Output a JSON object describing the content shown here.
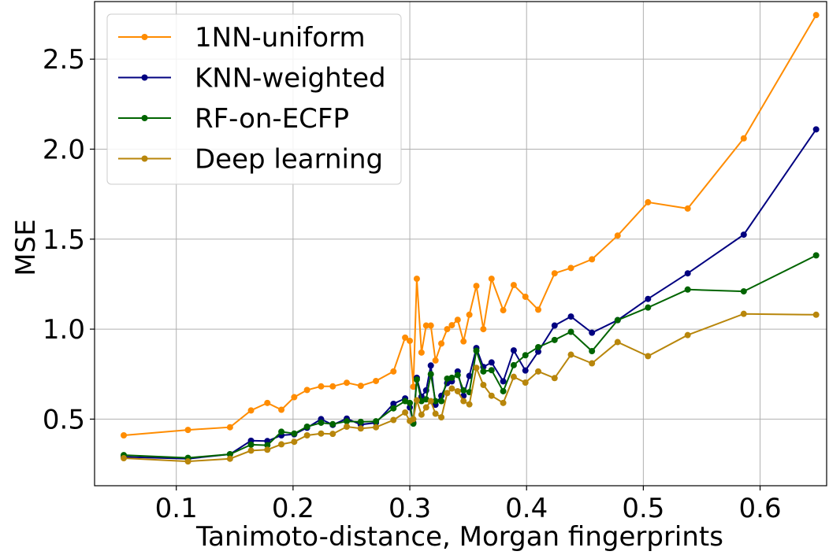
{
  "chart_data": {
    "type": "line",
    "title": "",
    "xlabel": "Tanimoto-distance, Morgan fingerprints",
    "ylabel": "MSE",
    "xlim": [
      0.03,
      0.657
    ],
    "ylim": [
      0.13,
      2.82
    ],
    "xticks": [
      0.1,
      0.2,
      0.3,
      0.4,
      0.5,
      0.6
    ],
    "xtick_labels": [
      "0.1",
      "0.2",
      "0.3",
      "0.4",
      "0.5",
      "0.6"
    ],
    "yticks": [
      0.5,
      1.0,
      1.5,
      2.0,
      2.5
    ],
    "ytick_labels": [
      "0.5",
      "1.0",
      "1.5",
      "2.0",
      "2.5"
    ],
    "grid": true,
    "legend_position": "top-left",
    "x": [
      0.055,
      0.11,
      0.146,
      0.164,
      0.178,
      0.19,
      0.201,
      0.212,
      0.224,
      0.234,
      0.246,
      0.258,
      0.271,
      0.286,
      0.296,
      0.3,
      0.303,
      0.306,
      0.31,
      0.314,
      0.318,
      0.322,
      0.327,
      0.332,
      0.336,
      0.341,
      0.346,
      0.351,
      0.357,
      0.363,
      0.37,
      0.38,
      0.389,
      0.399,
      0.41,
      0.424,
      0.438,
      0.456,
      0.478,
      0.504,
      0.538,
      0.586,
      0.648
    ],
    "series": [
      {
        "name": "1NN-uniform",
        "color": "#ff8c00",
        "values": [
          0.41,
          0.44,
          0.455,
          0.548,
          0.59,
          0.552,
          0.622,
          0.662,
          0.682,
          0.682,
          0.702,
          0.685,
          0.712,
          0.765,
          0.953,
          0.935,
          0.68,
          1.28,
          0.87,
          1.02,
          1.02,
          0.826,
          0.92,
          1.0,
          1.022,
          1.052,
          0.932,
          1.08,
          1.24,
          1.0,
          1.28,
          1.105,
          1.245,
          1.18,
          1.108,
          1.31,
          1.34,
          1.388,
          1.52,
          1.705,
          1.67,
          2.06,
          2.745
        ]
      },
      {
        "name": "KNN-weighted",
        "color": "#000080",
        "values": [
          0.29,
          0.28,
          0.305,
          0.38,
          0.378,
          0.41,
          0.416,
          0.452,
          0.5,
          0.468,
          0.503,
          0.47,
          0.48,
          0.585,
          0.615,
          0.565,
          0.48,
          0.73,
          0.625,
          0.66,
          0.798,
          0.58,
          0.63,
          0.7,
          0.71,
          0.765,
          0.63,
          0.74,
          0.895,
          0.79,
          0.815,
          0.71,
          0.882,
          0.77,
          0.875,
          1.02,
          1.07,
          0.98,
          1.05,
          1.168,
          1.31,
          1.525,
          2.11
        ]
      },
      {
        "name": "RF-on-ECFP",
        "color": "#006400",
        "values": [
          0.3,
          0.285,
          0.305,
          0.358,
          0.355,
          0.43,
          0.42,
          0.458,
          0.48,
          0.472,
          0.488,
          0.485,
          0.488,
          0.56,
          0.6,
          0.59,
          0.475,
          0.72,
          0.6,
          0.61,
          0.75,
          0.6,
          0.6,
          0.725,
          0.73,
          0.745,
          0.66,
          0.65,
          0.88,
          0.765,
          0.772,
          0.655,
          0.8,
          0.855,
          0.9,
          0.94,
          0.985,
          0.878,
          1.05,
          1.12,
          1.22,
          1.21,
          1.41
        ]
      },
      {
        "name": "Deep learning",
        "color": "#b8860b",
        "values": [
          0.283,
          0.265,
          0.28,
          0.325,
          0.33,
          0.36,
          0.374,
          0.41,
          0.42,
          0.418,
          0.458,
          0.448,
          0.455,
          0.495,
          0.537,
          0.49,
          0.5,
          0.605,
          0.525,
          0.565,
          0.6,
          0.53,
          0.51,
          0.645,
          0.67,
          0.655,
          0.6,
          0.582,
          0.785,
          0.69,
          0.63,
          0.59,
          0.735,
          0.703,
          0.765,
          0.728,
          0.858,
          0.81,
          0.928,
          0.85,
          0.967,
          1.085,
          1.08
        ]
      }
    ]
  }
}
